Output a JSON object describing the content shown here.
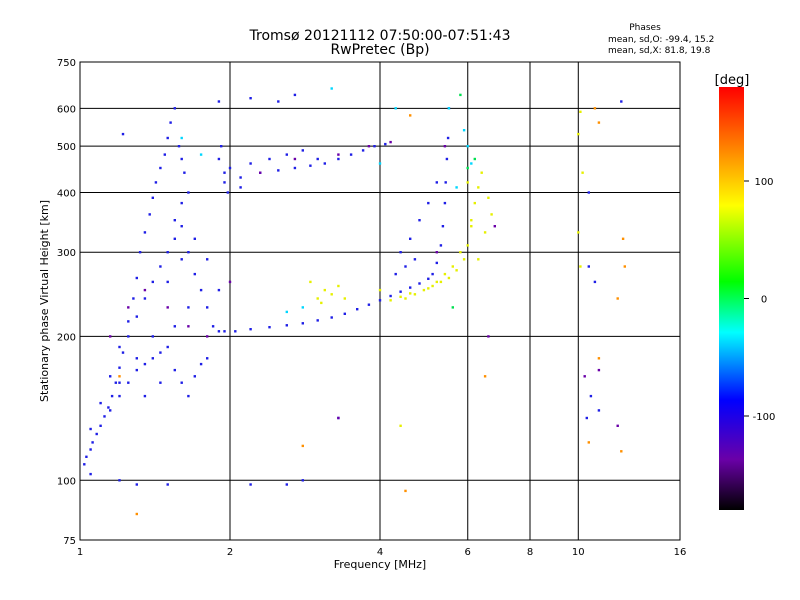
{
  "chart_data": {
    "type": "scatter",
    "title": "Tromsø 20121112 07:50:00-07:51:43",
    "subtitle": "RwPretec (Bp)",
    "xlabel": "Frequency [MHz]",
    "ylabel": "Stationary phase Virtual Height [km]",
    "x_scale": "log",
    "y_scale": "log",
    "xlim": [
      1,
      16
    ],
    "ylim": [
      75,
      750
    ],
    "x_ticks": [
      1,
      2,
      4,
      6,
      8,
      10,
      16
    ],
    "y_ticks": [
      75,
      100,
      200,
      300,
      400,
      500,
      600,
      750
    ],
    "x_tick_labels": [
      "1",
      "2",
      "4",
      "6",
      "8",
      "10",
      "16"
    ],
    "y_tick_labels": [
      "75",
      "100",
      "200",
      "300",
      "400",
      "500",
      "600",
      "750"
    ],
    "grid": true,
    "stats": {
      "title": "Phases",
      "line_o": "mean, sd,O: -99.4, 15.2",
      "line_x": "mean, sd,X:  81.8, 19.8"
    },
    "colorbar": {
      "label": "[deg]",
      "range": [
        -180,
        180
      ],
      "ticks": [
        100,
        0,
        -100
      ],
      "tick_labels": [
        "100",
        "0",
        "-100"
      ],
      "colormap": "rainbow",
      "stops": [
        "#000000",
        "#6a00a8",
        "#0000ff",
        "#00ffff",
        "#00ff00",
        "#ffff00",
        "#ff7f00",
        "#ff0000"
      ]
    },
    "series": [
      {
        "color": "#1f1fe6",
        "phase_deg": -100,
        "points": [
          [
            1.02,
            108
          ],
          [
            1.03,
            112
          ],
          [
            1.05,
            116
          ],
          [
            1.06,
            120
          ],
          [
            1.08,
            125
          ],
          [
            1.1,
            130
          ],
          [
            1.12,
            136
          ],
          [
            1.14,
            142
          ],
          [
            1.16,
            150
          ],
          [
            1.18,
            160
          ],
          [
            1.2,
            172
          ],
          [
            1.22,
            185
          ],
          [
            1.25,
            200
          ],
          [
            1.05,
            128
          ],
          [
            1.1,
            145
          ],
          [
            1.15,
            165
          ],
          [
            1.2,
            190
          ],
          [
            1.25,
            215
          ],
          [
            1.28,
            240
          ],
          [
            1.3,
            265
          ],
          [
            1.32,
            300
          ],
          [
            1.35,
            330
          ],
          [
            1.38,
            360
          ],
          [
            1.4,
            390
          ],
          [
            1.15,
            140
          ],
          [
            1.2,
            150
          ],
          [
            1.25,
            160
          ],
          [
            1.3,
            170
          ],
          [
            1.35,
            175
          ],
          [
            1.4,
            180
          ],
          [
            1.45,
            185
          ],
          [
            1.5,
            190
          ],
          [
            1.55,
            170
          ],
          [
            1.6,
            160
          ],
          [
            1.65,
            150
          ],
          [
            1.7,
            165
          ],
          [
            1.75,
            175
          ],
          [
            1.8,
            180
          ],
          [
            1.3,
            220
          ],
          [
            1.35,
            240
          ],
          [
            1.4,
            260
          ],
          [
            1.45,
            280
          ],
          [
            1.5,
            300
          ],
          [
            1.55,
            320
          ],
          [
            1.6,
            340
          ],
          [
            1.65,
            300
          ],
          [
            1.7,
            270
          ],
          [
            1.75,
            250
          ],
          [
            1.8,
            230
          ],
          [
            1.85,
            210
          ],
          [
            1.9,
            205
          ],
          [
            1.42,
            420
          ],
          [
            1.45,
            450
          ],
          [
            1.48,
            480
          ],
          [
            1.5,
            520
          ],
          [
            1.52,
            560
          ],
          [
            1.55,
            600
          ],
          [
            1.58,
            500
          ],
          [
            1.6,
            470
          ],
          [
            1.62,
            440
          ],
          [
            1.65,
            400
          ],
          [
            1.6,
            380
          ],
          [
            1.55,
            350
          ],
          [
            1.5,
            260
          ],
          [
            1.6,
            290
          ],
          [
            1.7,
            320
          ],
          [
            1.8,
            290
          ],
          [
            1.9,
            250
          ],
          [
            1.4,
            200
          ],
          [
            1.3,
            180
          ],
          [
            1.2,
            160
          ],
          [
            1.35,
            150
          ],
          [
            1.45,
            160
          ],
          [
            1.55,
            210
          ],
          [
            1.65,
            230
          ],
          [
            1.95,
            205
          ],
          [
            2.05,
            205
          ],
          [
            2.2,
            207
          ],
          [
            2.4,
            209
          ],
          [
            2.6,
            211
          ],
          [
            2.8,
            213
          ],
          [
            3.0,
            216
          ],
          [
            3.2,
            219
          ],
          [
            3.4,
            223
          ],
          [
            3.6,
            228
          ],
          [
            3.8,
            233
          ],
          [
            4.0,
            238
          ],
          [
            4.2,
            243
          ],
          [
            4.4,
            248
          ],
          [
            4.6,
            253
          ],
          [
            4.8,
            258
          ],
          [
            5.0,
            264
          ],
          [
            5.1,
            270
          ],
          [
            5.2,
            285
          ],
          [
            5.3,
            310
          ],
          [
            5.35,
            340
          ],
          [
            5.4,
            380
          ],
          [
            5.42,
            420
          ],
          [
            5.45,
            470
          ],
          [
            5.48,
            520
          ],
          [
            5.5,
            600
          ],
          [
            1.95,
            420
          ],
          [
            2.1,
            430
          ],
          [
            2.3,
            440
          ],
          [
            2.5,
            445
          ],
          [
            2.7,
            450
          ],
          [
            2.9,
            455
          ],
          [
            3.1,
            460
          ],
          [
            3.3,
            470
          ],
          [
            3.5,
            480
          ],
          [
            3.7,
            490
          ],
          [
            3.9,
            500
          ],
          [
            4.1,
            505
          ],
          [
            2.0,
            450
          ],
          [
            2.2,
            460
          ],
          [
            2.4,
            470
          ],
          [
            2.6,
            480
          ],
          [
            2.8,
            490
          ],
          [
            3.0,
            470
          ],
          [
            1.9,
            470
          ],
          [
            1.92,
            500
          ],
          [
            1.95,
            440
          ],
          [
            1.98,
            400
          ],
          [
            2.1,
            410
          ],
          [
            1.22,
            530
          ],
          [
            1.9,
            620
          ],
          [
            2.2,
            630
          ],
          [
            2.5,
            620
          ],
          [
            2.7,
            640
          ],
          [
            1.05,
            103
          ],
          [
            1.2,
            100
          ],
          [
            1.3,
            98
          ],
          [
            1.5,
            98
          ],
          [
            2.2,
            98
          ],
          [
            2.6,
            98
          ],
          [
            2.8,
            100
          ],
          [
            3.3,
            135
          ],
          [
            4.4,
            300
          ],
          [
            4.6,
            320
          ],
          [
            4.8,
            350
          ],
          [
            5.0,
            380
          ],
          [
            5.2,
            420
          ],
          [
            4.3,
            270
          ],
          [
            4.5,
            280
          ],
          [
            4.7,
            290
          ],
          [
            10.5,
            280
          ],
          [
            10.8,
            260
          ],
          [
            10.6,
            150
          ],
          [
            11.0,
            140
          ],
          [
            12.2,
            620
          ],
          [
            10.5,
            400
          ],
          [
            10.4,
            135
          ]
        ]
      },
      {
        "color": "#6a00a8",
        "phase_deg": -140,
        "points": [
          [
            1.15,
            200
          ],
          [
            1.25,
            230
          ],
          [
            1.35,
            250
          ],
          [
            1.5,
            230
          ],
          [
            1.65,
            210
          ],
          [
            1.8,
            200
          ],
          [
            2.0,
            260
          ],
          [
            2.3,
            440
          ],
          [
            2.7,
            470
          ],
          [
            3.3,
            480
          ],
          [
            3.8,
            500
          ],
          [
            4.2,
            510
          ],
          [
            5.2,
            300
          ],
          [
            5.4,
            500
          ],
          [
            6.8,
            340
          ],
          [
            6.6,
            200
          ],
          [
            3.3,
            135
          ],
          [
            12.0,
            130
          ],
          [
            11.0,
            170
          ],
          [
            10.3,
            165
          ]
        ]
      },
      {
        "color": "#00d7ff",
        "phase_deg": -20,
        "points": [
          [
            1.6,
            520
          ],
          [
            1.75,
            480
          ],
          [
            2.6,
            225
          ],
          [
            2.8,
            230
          ],
          [
            5.5,
            600
          ],
          [
            5.7,
            410
          ],
          [
            6.0,
            500
          ],
          [
            6.1,
            460
          ],
          [
            5.9,
            540
          ],
          [
            4.3,
            600
          ],
          [
            3.2,
            660
          ],
          [
            4.0,
            460
          ]
        ]
      },
      {
        "color": "#00e050",
        "phase_deg": 40,
        "points": [
          [
            5.8,
            640
          ],
          [
            6.2,
            470
          ],
          [
            5.6,
            230
          ],
          [
            6.0,
            450
          ]
        ]
      },
      {
        "color": "#e6f000",
        "phase_deg": 100,
        "points": [
          [
            3.0,
            240
          ],
          [
            3.1,
            250
          ],
          [
            3.2,
            245
          ],
          [
            3.3,
            255
          ],
          [
            3.4,
            240
          ],
          [
            2.9,
            260
          ],
          [
            3.05,
            235
          ],
          [
            4.5,
            240
          ],
          [
            4.7,
            245
          ],
          [
            4.9,
            250
          ],
          [
            5.1,
            255
          ],
          [
            5.3,
            260
          ],
          [
            5.5,
            265
          ],
          [
            5.7,
            275
          ],
          [
            5.9,
            290
          ],
          [
            6.0,
            310
          ],
          [
            6.1,
            340
          ],
          [
            6.2,
            380
          ],
          [
            6.3,
            410
          ],
          [
            5.8,
            300
          ],
          [
            5.6,
            280
          ],
          [
            6.5,
            330
          ],
          [
            6.7,
            360
          ],
          [
            6.6,
            390
          ],
          [
            6.4,
            440
          ],
          [
            6.0,
            420
          ],
          [
            6.1,
            350
          ],
          [
            6.3,
            290
          ],
          [
            4.0,
            250
          ],
          [
            4.2,
            238
          ],
          [
            4.4,
            242
          ],
          [
            4.6,
            246
          ],
          [
            5.0,
            252
          ],
          [
            5.2,
            260
          ],
          [
            5.4,
            270
          ],
          [
            10.1,
            590
          ],
          [
            10.0,
            530
          ],
          [
            10.2,
            440
          ],
          [
            10.0,
            330
          ],
          [
            10.1,
            280
          ],
          [
            4.4,
            130
          ]
        ]
      },
      {
        "color": "#ff9000",
        "phase_deg": 150,
        "points": [
          [
            1.2,
            165
          ],
          [
            1.3,
            85
          ],
          [
            2.8,
            118
          ],
          [
            4.5,
            95
          ],
          [
            4.6,
            580
          ],
          [
            6.5,
            165
          ],
          [
            10.8,
            600
          ],
          [
            11.0,
            560
          ],
          [
            12.3,
            320
          ],
          [
            12.4,
            280
          ],
          [
            12.0,
            240
          ],
          [
            11.0,
            180
          ],
          [
            10.5,
            120
          ],
          [
            12.2,
            115
          ]
        ]
      }
    ]
  }
}
